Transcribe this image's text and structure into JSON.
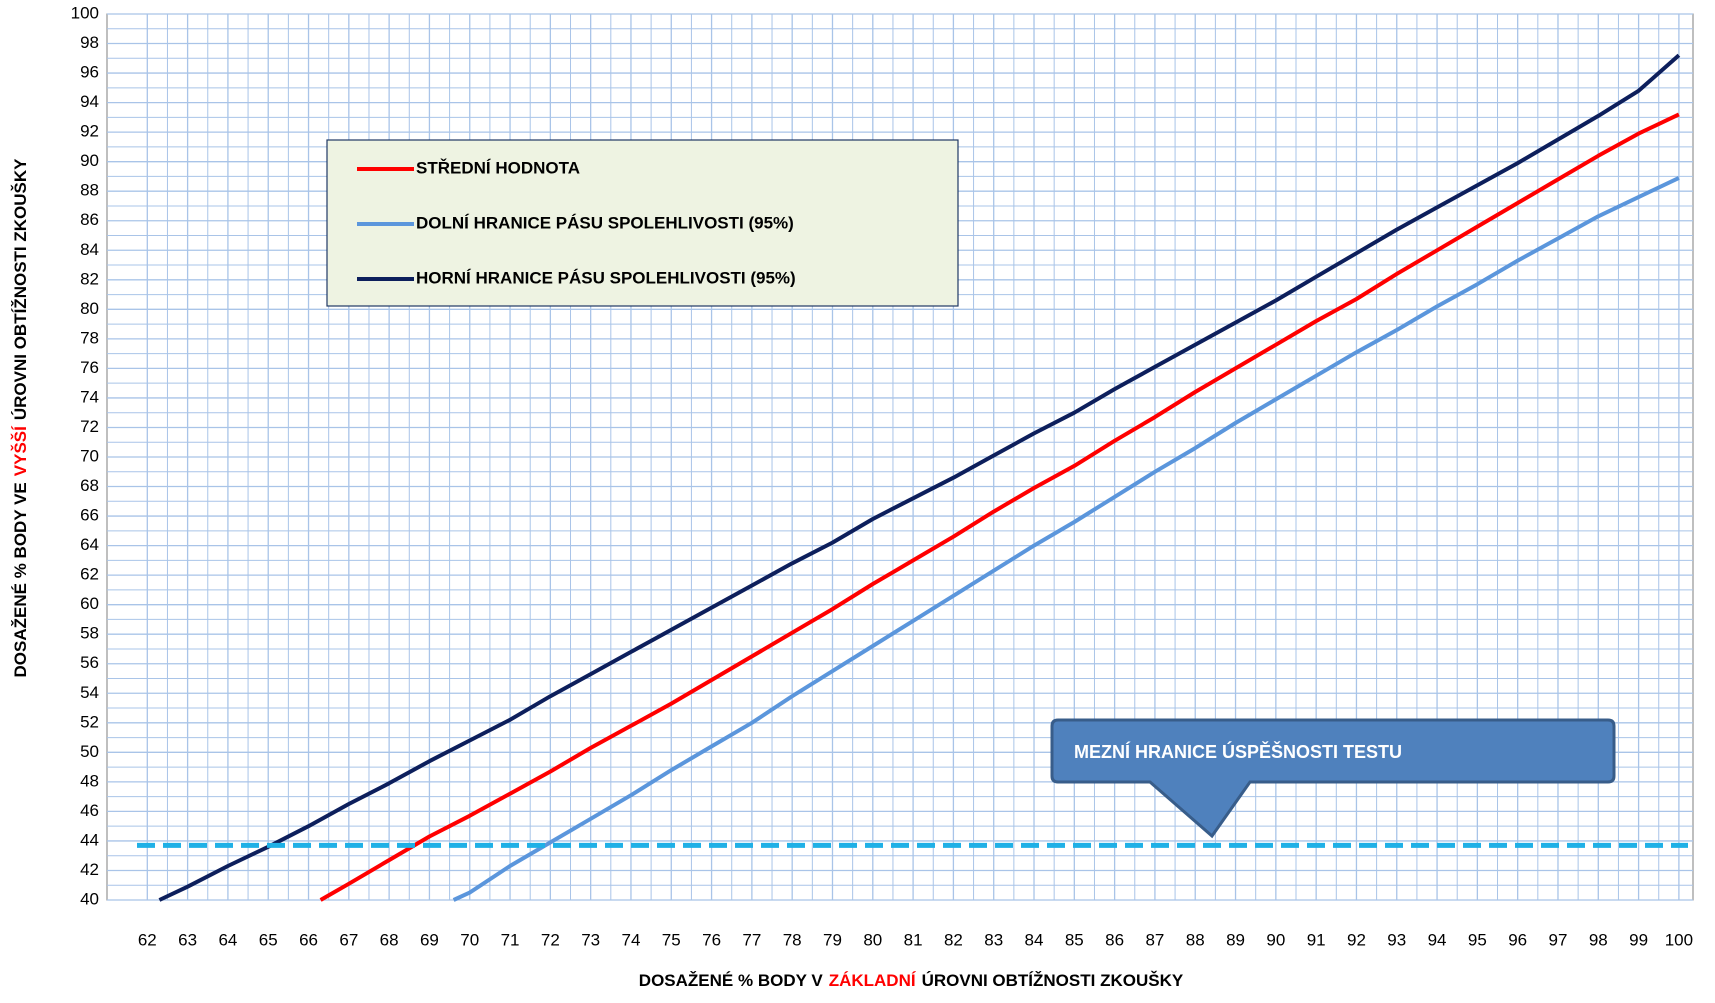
{
  "chart_data": {
    "type": "line",
    "x_label": [
      "DOSAŽENÉ % BODY V",
      "ZÁKLADNÍ",
      "ÚROVNI OBTÍŽNOSTI ZKOUŠKY"
    ],
    "y_label": [
      "DOSAŽENÉ % BODY VE",
      "VYŠŠÍ",
      "ÚROVNI OBTÍŽNOSTI ZKOUŠKY"
    ],
    "label_highlight_color": "#ff0000",
    "xlim": [
      61,
      100.35
    ],
    "xticks": [
      62,
      63,
      64,
      65,
      66,
      67,
      68,
      69,
      70,
      71,
      72,
      73,
      74,
      75,
      76,
      77,
      78,
      79,
      80,
      81,
      82,
      83,
      84,
      85,
      86,
      87,
      88,
      89,
      90,
      91,
      92,
      93,
      94,
      95,
      96,
      97,
      98,
      99,
      100
    ],
    "ylim": [
      40,
      100
    ],
    "yticks": [
      40,
      42,
      44,
      46,
      48,
      50,
      52,
      54,
      56,
      58,
      60,
      62,
      64,
      66,
      68,
      70,
      72,
      74,
      76,
      78,
      80,
      82,
      84,
      86,
      88,
      90,
      92,
      94,
      96,
      98,
      100
    ],
    "grid": true,
    "minor_grid": true,
    "legend": "upper left",
    "series": [
      {
        "name": "STŘEDNÍ HODNOTA",
        "color": "#ff0000",
        "x": [
          66.3,
          67,
          68,
          69,
          70,
          71,
          72,
          73,
          74,
          75,
          76,
          77,
          78,
          79,
          80,
          81,
          82,
          83,
          84,
          85,
          86,
          87,
          88,
          89,
          90,
          91,
          92,
          93,
          94,
          95,
          96,
          97,
          98,
          99,
          100
        ],
        "values": [
          40,
          41.1,
          42.7,
          44.3,
          45.7,
          47.2,
          48.7,
          50.3,
          51.8,
          53.3,
          54.9,
          56.5,
          58.1,
          59.7,
          61.4,
          63,
          64.6,
          66.3,
          67.9,
          69.4,
          71.1,
          72.7,
          74.4,
          76,
          77.6,
          79.2,
          80.7,
          82.4,
          84,
          85.6,
          87.2,
          88.8,
          90.4,
          91.9,
          93.2
        ]
      },
      {
        "name": "DOLNÍ HRANICE PÁSU SPOLEHLIVOSTI (95%)",
        "color": "#5b96dc",
        "x": [
          69.6,
          70,
          71,
          72,
          73,
          74,
          75,
          76,
          77,
          78,
          79,
          80,
          81,
          82,
          83,
          84,
          85,
          86,
          87,
          88,
          89,
          90,
          91,
          92,
          93,
          94,
          95,
          96,
          97,
          98,
          99,
          100
        ],
        "values": [
          40,
          40.5,
          42.3,
          43.9,
          45.5,
          47.1,
          48.8,
          50.4,
          52,
          53.8,
          55.5,
          57.2,
          58.9,
          60.6,
          62.3,
          64,
          65.6,
          67.3,
          69,
          70.6,
          72.3,
          73.9,
          75.5,
          77.1,
          78.6,
          80.2,
          81.7,
          83.3,
          84.8,
          86.3,
          87.6,
          88.9
        ]
      },
      {
        "name": "HORNÍ HRANICE PÁSU SPOLEHLIVOSTI (95%)",
        "color": "#0d1f5c",
        "x": [
          62.3,
          63,
          64,
          65,
          66,
          67,
          68,
          69,
          70,
          71,
          72,
          73,
          74,
          75,
          76,
          77,
          78,
          79,
          80,
          81,
          82,
          83,
          84,
          85,
          86,
          87,
          88,
          89,
          90,
          91,
          92,
          93,
          94,
          95,
          96,
          97,
          98,
          99,
          100
        ],
        "values": [
          40,
          40.9,
          42.3,
          43.6,
          45,
          46.5,
          47.9,
          49.4,
          50.8,
          52.2,
          53.8,
          55.3,
          56.8,
          58.3,
          59.8,
          61.3,
          62.8,
          64.2,
          65.8,
          67.2,
          68.6,
          70.1,
          71.6,
          73,
          74.6,
          76.1,
          77.6,
          79.1,
          80.6,
          82.2,
          83.8,
          85.4,
          86.9,
          88.4,
          89.9,
          91.5,
          93.1,
          94.8,
          97.2
        ]
      }
    ],
    "threshold": {
      "value": 43.7,
      "color": "#1fb0e6"
    },
    "annotation": "MEZNÍ HRANICE ÚSPĚŠNOSTI TESTU"
  }
}
